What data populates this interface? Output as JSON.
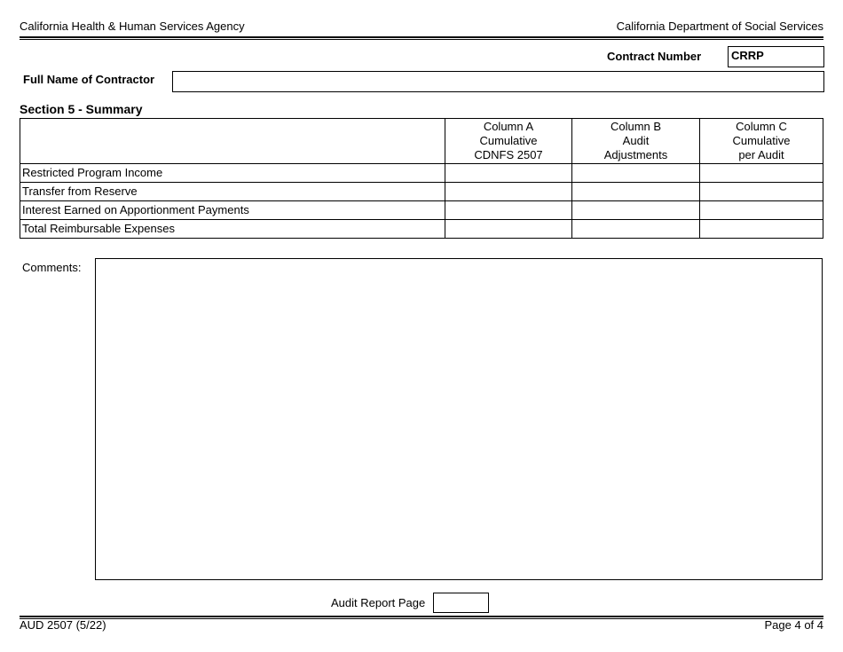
{
  "header": {
    "left": "California Health & Human Services Agency",
    "right": "California Department of Social Services"
  },
  "contract": {
    "label": "Contract Number",
    "value": "CRRP"
  },
  "contractor": {
    "label": "Full Name of Contractor",
    "value": ""
  },
  "section": {
    "title": "Section 5 - Summary",
    "columns": [
      [
        "Column A",
        "Cumulative",
        "CDNFS 2507"
      ],
      [
        "Column B",
        "Audit",
        "Adjustments"
      ],
      [
        "Column C",
        "Cumulative",
        "per Audit"
      ]
    ],
    "rows": [
      "Restricted Program Income",
      "Transfer from Reserve",
      "Interest Earned on Apportionment Payments",
      "Total Reimbursable Expenses"
    ]
  },
  "comments": {
    "label": "Comments:",
    "value": ""
  },
  "audit_report_page": {
    "label": "Audit Report Page",
    "value": ""
  },
  "footer": {
    "form": "AUD 2507 (5/22)",
    "page": "Page 4 of 4"
  }
}
